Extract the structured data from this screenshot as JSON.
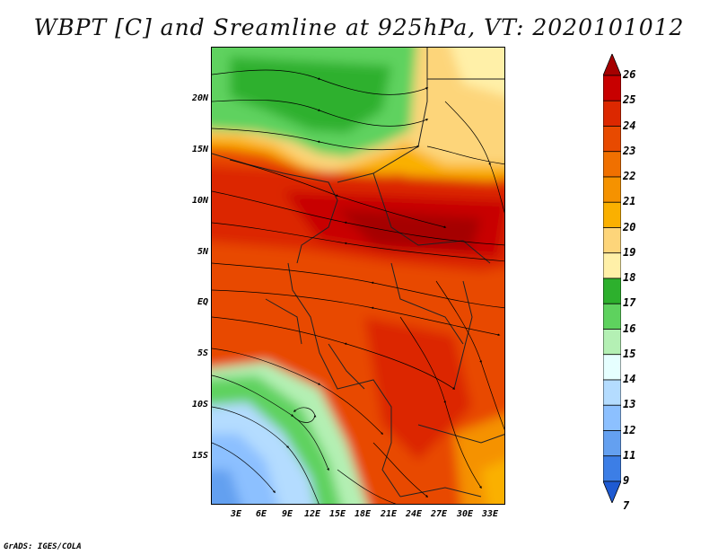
{
  "title": "WBPT [C] and Sreamline at 925hPa, VT: 2020101012",
  "credit": "GrADS: IGES/COLA",
  "latitude_labels": [
    "20N",
    "15N",
    "10N",
    "5N",
    "EQ",
    "5S",
    "10S",
    "15S"
  ],
  "longitude_labels": [
    "3E",
    "6E",
    "9E",
    "12E",
    "15E",
    "18E",
    "21E",
    "24E",
    "27E",
    "30E",
    "33E"
  ],
  "colorbar": {
    "labels": [
      "26",
      "25",
      "24",
      "23",
      "22",
      "21",
      "20",
      "19",
      "18",
      "17",
      "16",
      "15",
      "14",
      "13",
      "12",
      "11",
      "9",
      "7"
    ],
    "colors": [
      "#a50000",
      "#c80000",
      "#dc2800",
      "#e84a00",
      "#f07000",
      "#f59200",
      "#fab000",
      "#fdd57a",
      "#fff0a8",
      "#2db02d",
      "#5ed25e",
      "#b4f0b4",
      "#e6ffff",
      "#b4dcff",
      "#8cc0ff",
      "#64a0f0",
      "#3c7ee6",
      "#1e5ad2"
    ]
  },
  "chart_data": {
    "type": "heatmap",
    "variable": "WBPT [C] and Sreamline at 925hPa",
    "valid_time": "2020101012",
    "lon_range": [
      0,
      35
    ],
    "lat_range": [
      -20,
      24
    ],
    "field_summary": [
      {
        "region": "Sahel north of 15N",
        "wbpt_c": 17
      },
      {
        "region": "Northeast, upper right",
        "wbpt_c": 19
      },
      {
        "region": "Band 5N to 12N",
        "wbpt_c": 25
      },
      {
        "region": "Equator to 5S",
        "wbpt_c": 23
      },
      {
        "region": "Southeast interior",
        "wbpt_c": 23
      },
      {
        "region": "Southwest coastal Angola",
        "wbpt_c": 16
      },
      {
        "region": "Southwest ocean corner",
        "wbpt_c": 13
      }
    ]
  }
}
